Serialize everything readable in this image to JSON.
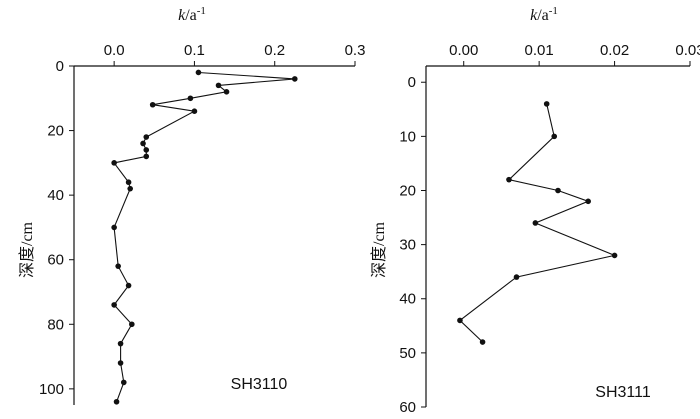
{
  "chart_data": [
    {
      "type": "line",
      "xlabel_k": "k",
      "xlabel_unit": "/a",
      "xlabel_exp": "-1",
      "ylabel": "深度/cm",
      "label": "SH3110",
      "xlim": [
        -0.05,
        0.3
      ],
      "ylim": [
        0,
        105
      ],
      "x_ticks": [
        "0.0",
        "0.1",
        "0.2",
        "0.3"
      ],
      "y_ticks": [
        "0",
        "20",
        "40",
        "60",
        "80",
        "100"
      ],
      "series": [
        {
          "points": [
            {
              "x": 0.105,
              "y": 2
            },
            {
              "x": 0.225,
              "y": 4
            },
            {
              "x": 0.13,
              "y": 6
            },
            {
              "x": 0.14,
              "y": 8
            },
            {
              "x": 0.095,
              "y": 10
            },
            {
              "x": 0.048,
              "y": 12
            },
            {
              "x": 0.1,
              "y": 14
            },
            {
              "x": 0.04,
              "y": 22
            },
            {
              "x": 0.036,
              "y": 24
            },
            {
              "x": 0.04,
              "y": 26
            },
            {
              "x": 0.04,
              "y": 28
            },
            {
              "x": 0.0,
              "y": 30
            },
            {
              "x": 0.018,
              "y": 36
            },
            {
              "x": 0.02,
              "y": 38
            },
            {
              "x": 0.0,
              "y": 50
            },
            {
              "x": 0.005,
              "y": 62
            },
            {
              "x": 0.018,
              "y": 68
            },
            {
              "x": 0.0,
              "y": 74
            },
            {
              "x": 0.022,
              "y": 80
            },
            {
              "x": 0.008,
              "y": 86
            },
            {
              "x": 0.008,
              "y": 92
            },
            {
              "x": 0.012,
              "y": 98
            },
            {
              "x": 0.003,
              "y": 104
            }
          ]
        }
      ]
    },
    {
      "type": "line",
      "xlabel_k": "k",
      "xlabel_unit": "/a",
      "xlabel_exp": "-1",
      "ylabel": "深度/cm",
      "label": "SH3111",
      "xlim": [
        -0.005,
        0.03
      ],
      "ylim": [
        -3,
        60
      ],
      "x_ticks": [
        "0.00",
        "0.01",
        "0.02",
        "0.03"
      ],
      "y_ticks": [
        "0",
        "10",
        "20",
        "30",
        "40",
        "50",
        "60"
      ],
      "series": [
        {
          "points": [
            {
              "x": 0.011,
              "y": 4
            },
            {
              "x": 0.012,
              "y": 10
            },
            {
              "x": 0.006,
              "y": 18
            },
            {
              "x": 0.0125,
              "y": 20
            },
            {
              "x": 0.0165,
              "y": 22
            },
            {
              "x": 0.0095,
              "y": 26
            },
            {
              "x": 0.02,
              "y": 32
            },
            {
              "x": 0.007,
              "y": 36
            },
            {
              "x": -0.0005,
              "y": 44
            },
            {
              "x": 0.0025,
              "y": 48
            }
          ]
        }
      ]
    }
  ]
}
